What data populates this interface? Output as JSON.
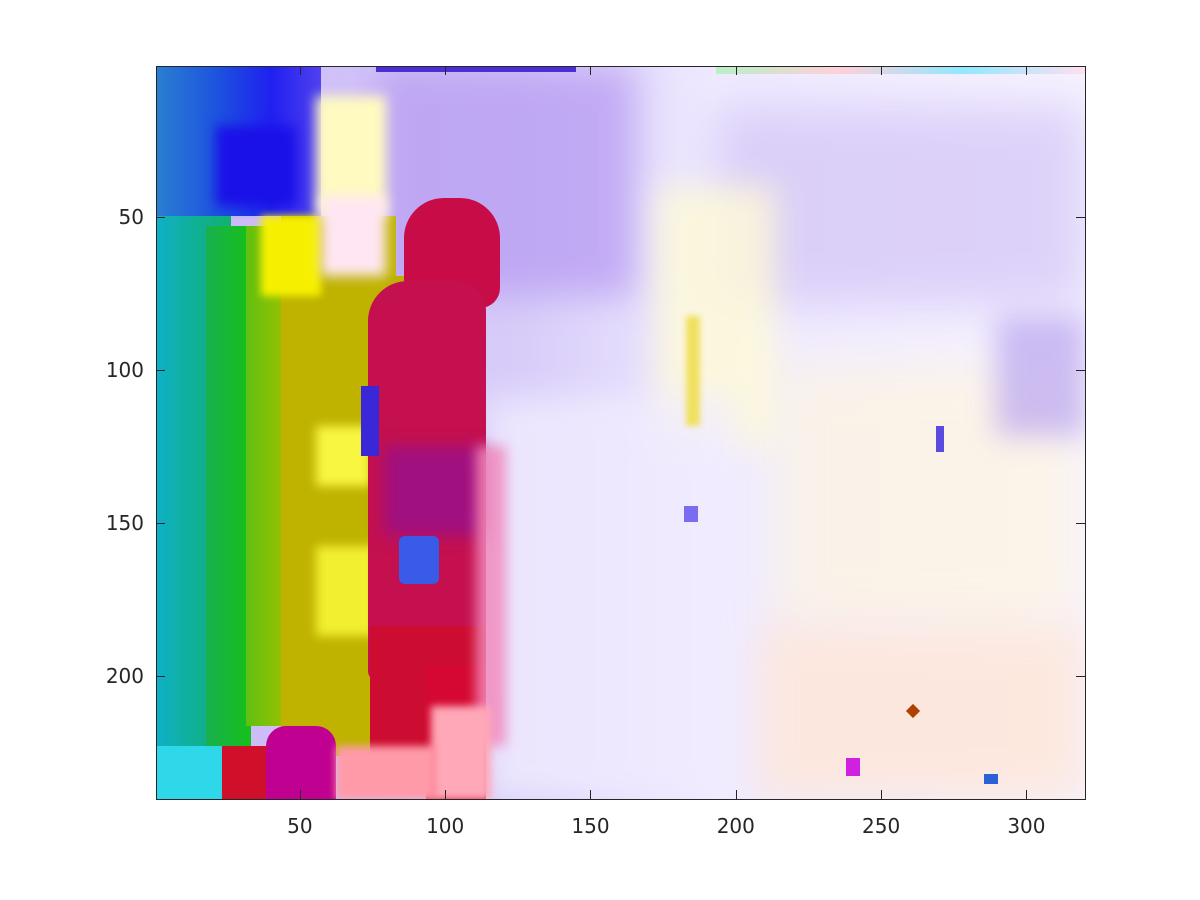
{
  "image": {
    "description_kind": "optical-flow color-coded visualization",
    "x_range": [
      1,
      320
    ],
    "y_range": [
      1,
      240
    ],
    "y_direction": "reversed"
  },
  "axes": {
    "x_ticks": [
      {
        "value": 50,
        "label": "50"
      },
      {
        "value": 100,
        "label": "100"
      },
      {
        "value": 150,
        "label": "150"
      },
      {
        "value": 200,
        "label": "200"
      },
      {
        "value": 250,
        "label": "250"
      },
      {
        "value": 300,
        "label": "300"
      }
    ],
    "y_ticks": [
      {
        "value": 50,
        "label": "50"
      },
      {
        "value": 100,
        "label": "100"
      },
      {
        "value": 150,
        "label": "150"
      },
      {
        "value": 200,
        "label": "200"
      }
    ]
  },
  "colors": {
    "axis": "#262626",
    "background": "#ffffff"
  }
}
